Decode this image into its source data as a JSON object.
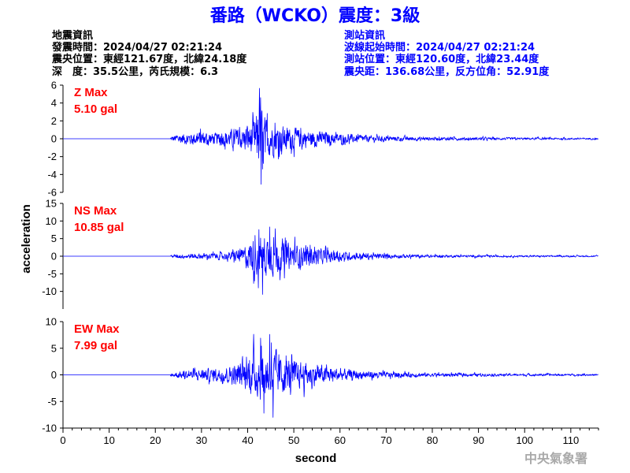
{
  "title": "番路（WCKO）震度：3級",
  "quake_info": {
    "heading": "地震資訊",
    "origin_time": "發震時間：2024/04/27 02:21:24",
    "epicenter": "震央位置：東經121.67度，北緯24.18度",
    "depth_magnitude": "深　度：35.5公里，芮氏規模：6.3"
  },
  "station_info": {
    "heading": "測站資訊",
    "wave_start": "波線起始時間：2024/04/27 02:21:24",
    "location": "測站位置：東經120.60度，北緯23.44度",
    "distance": "震央距：136.68公里，反方位角：52.91度"
  },
  "watermark": "中央氣象署",
  "colors": {
    "title": "#0000ff",
    "trace": "#0000ff",
    "max_label": "#ff0000",
    "watermark": "#a9a9a9"
  },
  "chart_data": {
    "type": "line",
    "xlabel": "second",
    "ylabel": "acceleration",
    "xlim": [
      0,
      116
    ],
    "x_ticks": [
      "0",
      "10",
      "20",
      "30",
      "40",
      "50",
      "60",
      "70",
      "80",
      "90",
      "100",
      "110"
    ],
    "signal_onset_s": 23.3,
    "panels": [
      {
        "name": "Z",
        "max_label": "Z Max",
        "max_value": "5.10 gal",
        "ylim": [
          -6,
          6
        ],
        "y_ticks": [
          "6",
          "4",
          "2",
          "0",
          "-2",
          "-4",
          "-6"
        ],
        "envelope": [
          {
            "t": 23.3,
            "a": 0.3
          },
          {
            "t": 25,
            "a": 0.7
          },
          {
            "t": 28,
            "a": 0.9
          },
          {
            "t": 30,
            "a": 1.1
          },
          {
            "t": 33,
            "a": 0.8
          },
          {
            "t": 36,
            "a": 1.2
          },
          {
            "t": 39,
            "a": 1.7
          },
          {
            "t": 41,
            "a": 2.3
          },
          {
            "t": 42.7,
            "a": 4.8
          },
          {
            "t": 44,
            "a": 2.8
          },
          {
            "t": 46,
            "a": 2.2
          },
          {
            "t": 49,
            "a": 1.6
          },
          {
            "t": 53,
            "a": 1.2
          },
          {
            "t": 57,
            "a": 0.9
          },
          {
            "t": 62,
            "a": 0.6
          },
          {
            "t": 70,
            "a": 0.35
          },
          {
            "t": 80,
            "a": 0.25
          },
          {
            "t": 95,
            "a": 0.18
          },
          {
            "t": 116,
            "a": 0.12
          }
        ],
        "peaks": [
          {
            "t": 42.8,
            "v": 4.6
          },
          {
            "t": 42.9,
            "v": -5.1
          },
          {
            "t": 42.5,
            "v": 3.1
          },
          {
            "t": 43.2,
            "v": -3.4
          }
        ]
      },
      {
        "name": "NS",
        "max_label": "NS Max",
        "max_value": "10.85 gal",
        "ylim": [
          -15,
          15
        ],
        "y_ticks": [
          "15",
          "10",
          "5",
          "0",
          "-5",
          "-10"
        ],
        "envelope": [
          {
            "t": 23.3,
            "a": 0.4
          },
          {
            "t": 25,
            "a": 0.8
          },
          {
            "t": 30,
            "a": 1.0
          },
          {
            "t": 36,
            "a": 1.4
          },
          {
            "t": 39,
            "a": 3.0
          },
          {
            "t": 41,
            "a": 6.5
          },
          {
            "t": 43,
            "a": 8.0
          },
          {
            "t": 45,
            "a": 7.0
          },
          {
            "t": 47,
            "a": 6.0
          },
          {
            "t": 50,
            "a": 4.5
          },
          {
            "t": 53,
            "a": 3.5
          },
          {
            "t": 58,
            "a": 2.2
          },
          {
            "t": 63,
            "a": 1.3
          },
          {
            "t": 70,
            "a": 0.8
          },
          {
            "t": 80,
            "a": 0.5
          },
          {
            "t": 95,
            "a": 0.35
          },
          {
            "t": 116,
            "a": 0.25
          }
        ],
        "peaks": [
          {
            "t": 43.2,
            "v": -10.85
          },
          {
            "t": 44.8,
            "v": 8.3
          },
          {
            "t": 42.3,
            "v": -9.0
          },
          {
            "t": 46.0,
            "v": 7.8
          }
        ]
      },
      {
        "name": "EW",
        "max_label": "EW Max",
        "max_value": "7.99 gal",
        "ylim": [
          -10,
          10
        ],
        "y_ticks": [
          "10",
          "5",
          "0",
          "-5",
          "-10"
        ],
        "envelope": [
          {
            "t": 23.3,
            "a": 0.4
          },
          {
            "t": 25,
            "a": 0.8
          },
          {
            "t": 29,
            "a": 1.2
          },
          {
            "t": 33,
            "a": 1.6
          },
          {
            "t": 36,
            "a": 2.0
          },
          {
            "t": 39,
            "a": 3.2
          },
          {
            "t": 41,
            "a": 5.0
          },
          {
            "t": 43,
            "a": 6.0
          },
          {
            "t": 45,
            "a": 6.2
          },
          {
            "t": 47,
            "a": 5.0
          },
          {
            "t": 50,
            "a": 3.5
          },
          {
            "t": 53,
            "a": 2.8
          },
          {
            "t": 58,
            "a": 1.8
          },
          {
            "t": 63,
            "a": 1.1
          },
          {
            "t": 70,
            "a": 0.7
          },
          {
            "t": 80,
            "a": 0.45
          },
          {
            "t": 95,
            "a": 0.3
          },
          {
            "t": 116,
            "a": 0.22
          }
        ],
        "peaks": [
          {
            "t": 45.5,
            "v": -7.99
          },
          {
            "t": 44.8,
            "v": 7.6
          },
          {
            "t": 42.8,
            "v": 6.9
          },
          {
            "t": 43.5,
            "v": -7.2
          }
        ]
      }
    ]
  }
}
